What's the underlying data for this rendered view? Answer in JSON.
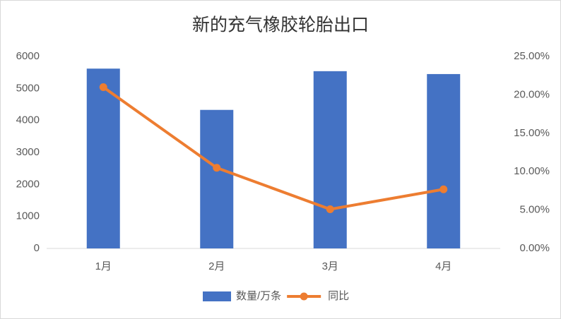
{
  "chart_data": {
    "type": "combo",
    "title": "新的充气橡胶轮胎出口",
    "categories": [
      "1月",
      "2月",
      "3月",
      "4月"
    ],
    "series": [
      {
        "name": "数量/万条",
        "type": "bar",
        "color": "#4472c4",
        "values": [
          5620,
          4330,
          5540,
          5450
        ]
      },
      {
        "name": "同比",
        "type": "line",
        "axis": "y2",
        "color": "#ed7d31",
        "values": [
          21.0,
          10.5,
          5.1,
          7.7
        ]
      }
    ],
    "ylim": [
      0,
      6000
    ],
    "yticks": [
      0,
      1000,
      2000,
      3000,
      4000,
      5000,
      6000
    ],
    "y2lim": [
      0,
      25
    ],
    "y2ticks": [
      {
        "value": 0,
        "label": "0.00%"
      },
      {
        "value": 5,
        "label": "5.00%"
      },
      {
        "value": 10,
        "label": "10.00%"
      },
      {
        "value": 15,
        "label": "15.00%"
      },
      {
        "value": 20,
        "label": "20.00%"
      },
      {
        "value": 25,
        "label": "25.00%"
      }
    ],
    "grid": false,
    "legend": "bottom"
  }
}
